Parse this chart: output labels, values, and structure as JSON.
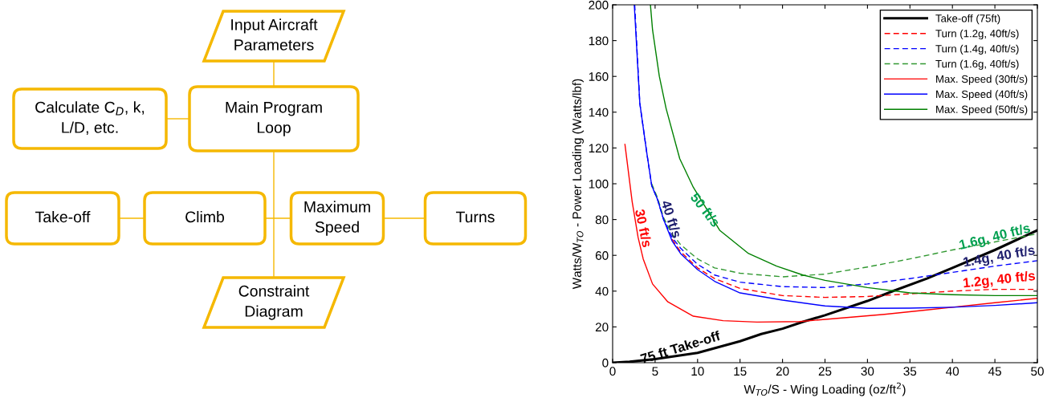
{
  "chart_data": [
    {
      "type": "other",
      "annotations": [
        "Input Aircraft Parameters",
        "Calculate C$_{D}$, k, L/D, etc.",
        "Main Program Loop",
        "Take-off",
        "Climb",
        "Maximum Speed",
        "Turns",
        "Constraint Diagram"
      ]
    },
    {
      "type": "line",
      "xlabel": "W$_{TO}$/S - Wing Loading (oz/ft$^{2}$)",
      "ylabel": "Watts/W$_{TO}$ - Power Loading (Watts/lbf)",
      "xlim": [
        0,
        50
      ],
      "ylim": [
        0,
        200
      ],
      "xticks": [
        0,
        5,
        10,
        15,
        20,
        25,
        30,
        35,
        40,
        45,
        50
      ],
      "yticks": [
        0,
        20,
        40,
        60,
        80,
        100,
        120,
        140,
        160,
        180,
        200
      ],
      "grid": false,
      "legend": "top right",
      "series": [
        {
          "name": "Take-off (75ft)",
          "color": "#000000",
          "line_style": "solid",
          "x": [
            0,
            2,
            5,
            10,
            15,
            17.5,
            20,
            22.5,
            25,
            30,
            33,
            37,
            40,
            45,
            50
          ],
          "values": [
            0,
            0.5,
            2,
            5.5,
            12,
            16,
            19,
            23,
            26.5,
            34.5,
            40,
            47,
            53,
            63,
            74
          ]
        },
        {
          "name": "Turn (1.2g, 40ft/s)",
          "color": "#ff0000",
          "line_style": "dashed",
          "x": [
            7,
            8,
            10,
            12,
            15,
            20,
            25,
            30,
            35,
            40,
            45,
            50
          ],
          "values": [
            69,
            62,
            53,
            47,
            41.5,
            37.5,
            36.5,
            37,
            38.5,
            40,
            41,
            41
          ]
        },
        {
          "name": "Turn (1.4g, 40ft/s)",
          "color": "#0000ff",
          "line_style": "dashed",
          "x": [
            2.6,
            3.2,
            4,
            4.6,
            5.3,
            6,
            7,
            8,
            10,
            12,
            15,
            20,
            25,
            30,
            35,
            40,
            45,
            50
          ],
          "values": [
            200,
            145,
            118,
            99,
            91,
            80,
            70,
            64,
            55,
            49,
            45,
            42.5,
            42,
            44,
            47,
            50.5,
            54,
            57
          ]
        },
        {
          "name": "Turn (1.6g, 40ft/s)",
          "color": "#339933",
          "line_style": "dashed",
          "x": [
            4.6,
            5.3,
            6,
            7,
            8,
            10,
            12,
            15,
            20,
            25,
            30,
            35,
            40,
            45,
            50
          ],
          "values": [
            100,
            92,
            81,
            72,
            66,
            58,
            53,
            50,
            48,
            49.5,
            53.5,
            58,
            63,
            67.5,
            72
          ]
        },
        {
          "name": "Max. Speed (30ft/s)",
          "color": "#ff0000",
          "line_style": "solid",
          "x": [
            1.45,
            2.3,
            3,
            3.6,
            4.7,
            6.5,
            9.5,
            13,
            17,
            22,
            27,
            32,
            37,
            40,
            45,
            50
          ],
          "values": [
            122,
            90,
            70,
            58,
            44,
            34,
            26,
            23.5,
            22.7,
            23,
            25,
            27,
            29.5,
            31,
            33.5,
            36
          ]
        },
        {
          "name": "Max. Speed (40ft/s)",
          "color": "#0000ff",
          "line_style": "solid",
          "x": [
            2.55,
            3.2,
            4,
            4.6,
            5.3,
            6,
            7,
            8,
            10,
            12,
            15,
            20,
            25,
            30,
            35,
            40,
            45,
            50
          ],
          "values": [
            200,
            145,
            118,
            99,
            91,
            80,
            68,
            61,
            52,
            45.5,
            39,
            35,
            31.7,
            30.4,
            30.5,
            31,
            32,
            33.5
          ]
        },
        {
          "name": "Max. Speed (50ft/s)",
          "color": "#008000",
          "line_style": "solid",
          "x": [
            4.45,
            4.7,
            5.5,
            6.3,
            7.9,
            9.5,
            12.6,
            16,
            19.3,
            22.4,
            25,
            30,
            35,
            40,
            45,
            50
          ],
          "values": [
            200,
            186,
            160,
            142,
            114,
            98,
            74,
            61,
            54,
            49,
            46,
            42,
            39,
            38,
            37.5,
            37.5
          ]
        }
      ],
      "annotations": [
        "30 ft/s",
        "40 ft/s",
        "50 ft/s",
        "75 ft Take-off",
        "1.6g, 40 ft/s",
        "1.4g, 40 ft/s",
        "1.2g, 40 ft/s"
      ]
    }
  ]
}
